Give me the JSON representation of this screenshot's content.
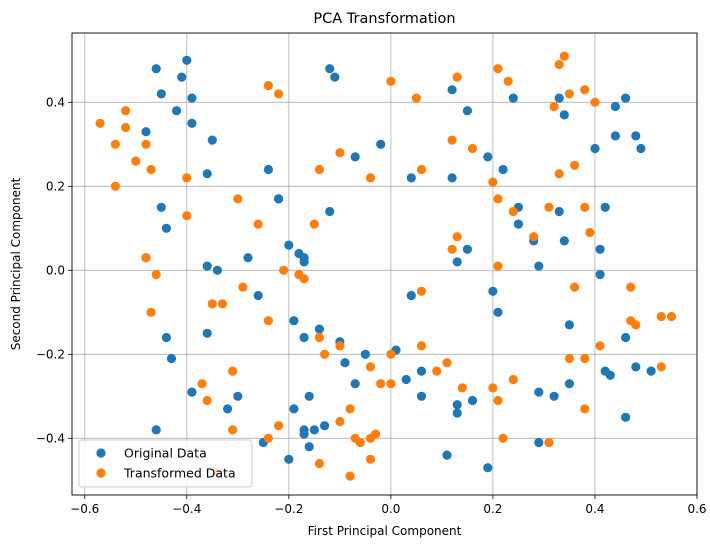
{
  "chart_data": {
    "type": "scatter",
    "title": "PCA Transformation",
    "xlabel": "First Principal Component",
    "ylabel": "Second Principal Component",
    "xlim": [
      -0.625,
      0.6
    ],
    "ylim": [
      -0.535,
      0.565
    ],
    "xticks": [
      -0.6,
      -0.4,
      -0.2,
      0.0,
      0.2,
      0.4,
      0.6
    ],
    "yticks": [
      -0.4,
      -0.2,
      0.0,
      0.2,
      0.4
    ],
    "xtick_labels": [
      "−0.6",
      "−0.4",
      "−0.2",
      "0.0",
      "0.2",
      "0.4",
      "0.6"
    ],
    "ytick_labels": [
      "−0.4",
      "−0.2",
      "0.0",
      "0.2",
      "0.4"
    ],
    "grid": true,
    "legend_position": "lower-left",
    "series": [
      {
        "name": "Original Data",
        "color": "#1f77b4",
        "points": [
          [
            -0.46,
            0.48
          ],
          [
            -0.4,
            0.5
          ],
          [
            -0.41,
            0.46
          ],
          [
            -0.45,
            0.42
          ],
          [
            -0.39,
            0.41
          ],
          [
            -0.48,
            0.33
          ],
          [
            -0.42,
            0.38
          ],
          [
            -0.39,
            0.35
          ],
          [
            -0.35,
            0.31
          ],
          [
            -0.36,
            0.23
          ],
          [
            -0.45,
            0.15
          ],
          [
            -0.44,
            0.1
          ],
          [
            -0.24,
            0.24
          ],
          [
            -0.22,
            0.17
          ],
          [
            -0.22,
            0.17
          ],
          [
            -0.12,
            0.48
          ],
          [
            -0.11,
            0.46
          ],
          [
            -0.07,
            0.27
          ],
          [
            -0.02,
            0.3
          ],
          [
            -0.12,
            0.14
          ],
          [
            0.04,
            0.22
          ],
          [
            0.12,
            0.43
          ],
          [
            0.15,
            0.38
          ],
          [
            0.12,
            0.22
          ],
          [
            0.19,
            0.27
          ],
          [
            0.22,
            0.24
          ],
          [
            0.24,
            0.41
          ],
          [
            0.33,
            0.41
          ],
          [
            0.34,
            0.37
          ],
          [
            0.4,
            0.29
          ],
          [
            0.44,
            0.39
          ],
          [
            0.46,
            0.41
          ],
          [
            0.48,
            0.32
          ],
          [
            0.44,
            0.32
          ],
          [
            0.49,
            0.29
          ],
          [
            0.25,
            0.15
          ],
          [
            0.25,
            0.11
          ],
          [
            0.28,
            0.07
          ],
          [
            0.33,
            0.14
          ],
          [
            0.42,
            0.15
          ],
          [
            0.34,
            0.07
          ],
          [
            0.41,
            0.05
          ],
          [
            0.15,
            0.05
          ],
          [
            0.13,
            0.02
          ],
          [
            0.2,
            -0.05
          ],
          [
            0.21,
            -0.1
          ],
          [
            0.29,
            0.01
          ],
          [
            0.41,
            -0.01
          ],
          [
            -0.48,
            0.03
          ],
          [
            -0.36,
            0.01
          ],
          [
            -0.34,
            0.0
          ],
          [
            -0.28,
            0.03
          ],
          [
            -0.2,
            0.06
          ],
          [
            -0.18,
            0.04
          ],
          [
            -0.17,
            0.03
          ],
          [
            -0.17,
            0.02
          ],
          [
            -0.26,
            -0.06
          ],
          [
            -0.36,
            -0.15
          ],
          [
            -0.44,
            -0.16
          ],
          [
            -0.43,
            -0.21
          ],
          [
            -0.19,
            -0.12
          ],
          [
            -0.17,
            -0.16
          ],
          [
            -0.14,
            -0.14
          ],
          [
            -0.09,
            -0.22
          ],
          [
            -0.05,
            -0.2
          ],
          [
            -0.1,
            -0.17
          ],
          [
            0.01,
            -0.19
          ],
          [
            0.04,
            -0.06
          ],
          [
            0.06,
            -0.24
          ],
          [
            0.03,
            -0.26
          ],
          [
            0.35,
            -0.13
          ],
          [
            0.46,
            -0.16
          ],
          [
            0.35,
            -0.27
          ],
          [
            0.42,
            -0.24
          ],
          [
            0.43,
            -0.25
          ],
          [
            0.48,
            -0.23
          ],
          [
            0.51,
            -0.24
          ],
          [
            -0.39,
            -0.29
          ],
          [
            -0.3,
            -0.3
          ],
          [
            -0.32,
            -0.33
          ],
          [
            -0.19,
            -0.33
          ],
          [
            -0.16,
            -0.3
          ],
          [
            -0.07,
            -0.27
          ],
          [
            -0.46,
            -0.38
          ],
          [
            -0.25,
            -0.41
          ],
          [
            -0.17,
            -0.38
          ],
          [
            -0.15,
            -0.38
          ],
          [
            -0.13,
            -0.37
          ],
          [
            -0.16,
            -0.42
          ],
          [
            -0.17,
            -0.39
          ],
          [
            -0.2,
            -0.45
          ],
          [
            0.06,
            -0.3
          ],
          [
            0.13,
            -0.32
          ],
          [
            0.13,
            -0.34
          ],
          [
            0.16,
            -0.31
          ],
          [
            0.29,
            -0.29
          ],
          [
            0.32,
            -0.3
          ],
          [
            0.46,
            -0.35
          ],
          [
            0.29,
            -0.41
          ],
          [
            0.11,
            -0.44
          ],
          [
            0.19,
            -0.47
          ]
        ]
      },
      {
        "name": "Transformed Data",
        "color": "#ff7f0e",
        "points": [
          [
            -0.57,
            0.35
          ],
          [
            -0.52,
            0.38
          ],
          [
            -0.54,
            0.3
          ],
          [
            -0.52,
            0.34
          ],
          [
            -0.48,
            0.3
          ],
          [
            -0.5,
            0.26
          ],
          [
            -0.47,
            0.24
          ],
          [
            -0.54,
            0.2
          ],
          [
            -0.4,
            0.22
          ],
          [
            -0.4,
            0.13
          ],
          [
            -0.24,
            0.44
          ],
          [
            -0.22,
            0.42
          ],
          [
            -0.1,
            0.28
          ],
          [
            -0.14,
            0.24
          ],
          [
            -0.04,
            0.22
          ],
          [
            -0.3,
            0.17
          ],
          [
            -0.26,
            0.11
          ],
          [
            -0.15,
            0.11
          ],
          [
            0.0,
            0.45
          ],
          [
            0.05,
            0.41
          ],
          [
            0.13,
            0.46
          ],
          [
            0.21,
            0.48
          ],
          [
            0.23,
            0.45
          ],
          [
            0.12,
            0.31
          ],
          [
            0.16,
            0.29
          ],
          [
            0.06,
            0.24
          ],
          [
            0.2,
            0.21
          ],
          [
            0.21,
            0.17
          ],
          [
            0.24,
            0.14
          ],
          [
            0.33,
            0.49
          ],
          [
            0.34,
            0.51
          ],
          [
            0.38,
            0.43
          ],
          [
            0.35,
            0.42
          ],
          [
            0.32,
            0.39
          ],
          [
            0.4,
            0.4
          ],
          [
            0.33,
            0.23
          ],
          [
            0.36,
            0.25
          ],
          [
            0.31,
            0.15
          ],
          [
            0.38,
            0.15
          ],
          [
            0.39,
            0.09
          ],
          [
            0.13,
            0.08
          ],
          [
            0.12,
            0.05
          ],
          [
            0.21,
            0.01
          ],
          [
            0.28,
            0.08
          ],
          [
            0.36,
            -0.04
          ],
          [
            0.47,
            -0.04
          ],
          [
            -0.48,
            0.03
          ],
          [
            -0.46,
            -0.01
          ],
          [
            -0.47,
            -0.1
          ],
          [
            -0.29,
            -0.04
          ],
          [
            -0.35,
            -0.08
          ],
          [
            -0.33,
            -0.08
          ],
          [
            -0.24,
            -0.12
          ],
          [
            -0.21,
            0.0
          ],
          [
            -0.18,
            -0.01
          ],
          [
            -0.17,
            -0.02
          ],
          [
            -0.14,
            -0.16
          ],
          [
            -0.13,
            -0.2
          ],
          [
            -0.1,
            -0.18
          ],
          [
            -0.04,
            -0.23
          ],
          [
            0.0,
            -0.2
          ],
          [
            0.06,
            -0.05
          ],
          [
            0.06,
            -0.18
          ],
          [
            0.09,
            -0.24
          ],
          [
            0.11,
            -0.22
          ],
          [
            0.14,
            -0.28
          ],
          [
            0.2,
            -0.28
          ],
          [
            0.21,
            -0.31
          ],
          [
            0.24,
            -0.26
          ],
          [
            0.35,
            -0.21
          ],
          [
            0.38,
            -0.21
          ],
          [
            0.41,
            -0.18
          ],
          [
            0.47,
            -0.12
          ],
          [
            0.48,
            -0.13
          ],
          [
            0.53,
            -0.11
          ],
          [
            0.55,
            -0.11
          ],
          [
            0.53,
            -0.23
          ],
          [
            -0.37,
            -0.27
          ],
          [
            -0.36,
            -0.31
          ],
          [
            -0.31,
            -0.24
          ],
          [
            -0.31,
            -0.38
          ],
          [
            -0.24,
            -0.4
          ],
          [
            -0.22,
            -0.37
          ],
          [
            -0.1,
            -0.36
          ],
          [
            -0.08,
            -0.33
          ],
          [
            -0.02,
            -0.27
          ],
          [
            0.0,
            -0.27
          ],
          [
            -0.07,
            -0.4
          ],
          [
            -0.06,
            -0.41
          ],
          [
            -0.04,
            -0.4
          ],
          [
            -0.03,
            -0.39
          ],
          [
            -0.04,
            -0.45
          ],
          [
            -0.08,
            -0.49
          ],
          [
            -0.14,
            -0.46
          ],
          [
            0.22,
            -0.4
          ],
          [
            0.31,
            -0.41
          ],
          [
            0.38,
            -0.33
          ],
          [
            -0.34,
            -0.48
          ]
        ]
      }
    ]
  }
}
